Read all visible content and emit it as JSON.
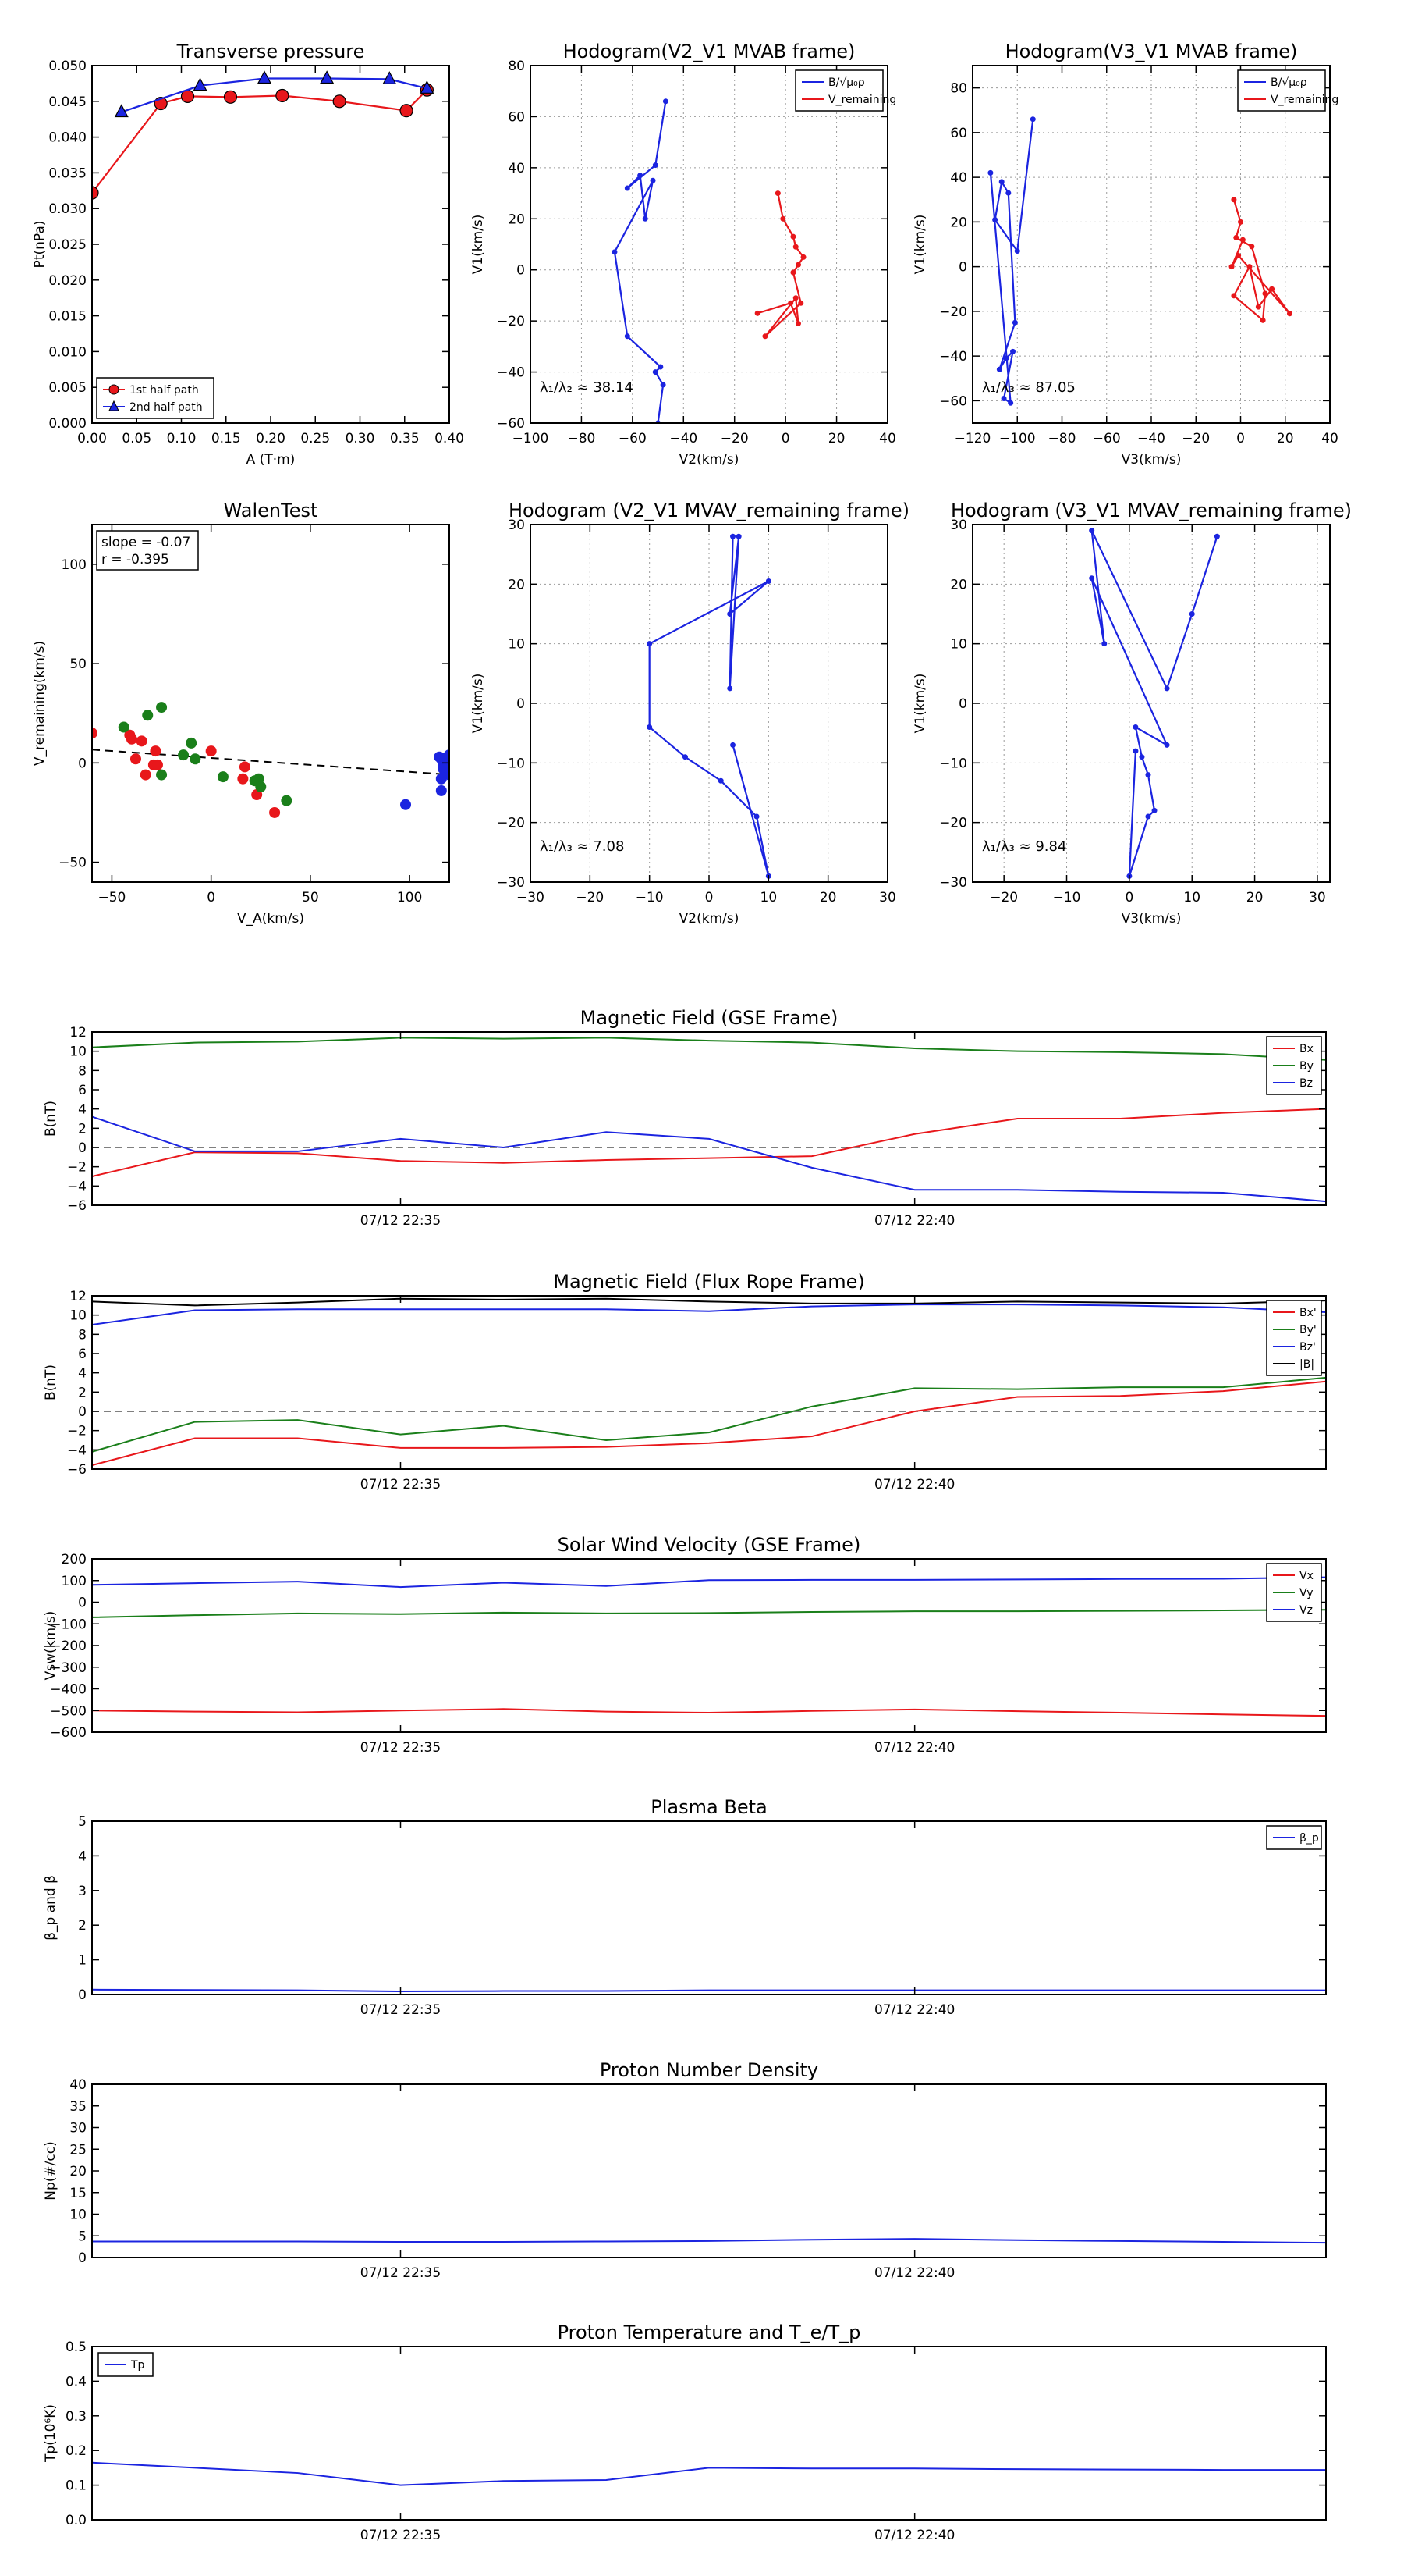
{
  "colors": {
    "red": "#e8171b",
    "green": "#1a7f1a",
    "blue": "#1b24e0",
    "black": "#000000",
    "grid": "#9a9a9a"
  },
  "chart_data": [
    {
      "id": "tp",
      "type": "line",
      "title": "Transverse pressure",
      "xlabel": "A (T·m)",
      "ylabel": "Pt(nPa)",
      "xlim": [
        0,
        0.4
      ],
      "ylim": [
        0,
        0.05
      ],
      "xticks": [
        "0.00",
        "0.05",
        "0.10",
        "0.15",
        "0.20",
        "0.25",
        "0.30",
        "0.35",
        "0.40"
      ],
      "yticks": [
        "0.000",
        "0.005",
        "0.010",
        "0.015",
        "0.020",
        "0.025",
        "0.030",
        "0.035",
        "0.040",
        "0.045",
        "0.050"
      ],
      "legend": "lower-left",
      "grid": false,
      "series": [
        {
          "name": "1st half path",
          "color": "red",
          "marker": "circle",
          "x": [
            0.0,
            0.077,
            0.107,
            0.155,
            0.213,
            0.277,
            0.352,
            0.375
          ],
          "y": [
            0.0322,
            0.0447,
            0.0457,
            0.0456,
            0.0458,
            0.045,
            0.0437,
            0.0466
          ]
        },
        {
          "name": "2nd half path",
          "color": "blue",
          "marker": "triangle",
          "x": [
            0.033,
            0.121,
            0.193,
            0.263,
            0.333,
            0.375
          ],
          "y": [
            0.0435,
            0.0472,
            0.0482,
            0.0482,
            0.0481,
            0.0468
          ]
        }
      ]
    },
    {
      "id": "h21",
      "type": "line",
      "title": "Hodogram(V2_V1 MVAB frame)",
      "xlabel": "V2(km/s)",
      "ylabel": "V1(km/s)",
      "xlim": [
        -100,
        40
      ],
      "ylim": [
        -60,
        80
      ],
      "xticks": [
        "−100",
        "−80",
        "−60",
        "−40",
        "−20",
        "0",
        "20",
        "40"
      ],
      "yticks": [
        "−60",
        "−40",
        "−20",
        "0",
        "20",
        "40",
        "60",
        "80"
      ],
      "legend": "top-right",
      "grid": true,
      "annotation": "λ₁/λ₂ ≈ 38.14",
      "series": [
        {
          "name": "B/√μ₀ρ",
          "color": "blue",
          "x": [
            -47,
            -51,
            -62,
            -57,
            -55,
            -52,
            -67,
            -62,
            -49,
            -51,
            -48,
            -50
          ],
          "y": [
            66,
            41,
            32,
            37,
            20,
            35,
            7,
            -26,
            -38,
            -40,
            -45,
            -60
          ]
        },
        {
          "name": "V_remaining",
          "color": "red",
          "x": [
            -3,
            -1,
            3,
            4,
            7,
            5,
            3,
            6,
            -8,
            4,
            5,
            2,
            -11
          ],
          "y": [
            30,
            20,
            13,
            9,
            5,
            2,
            -1,
            -13,
            -26,
            -11,
            -21,
            -13,
            -17
          ]
        }
      ]
    },
    {
      "id": "h31",
      "type": "line",
      "title": "Hodogram(V3_V1 MVAB frame)",
      "xlabel": "V3(km/s)",
      "ylabel": "V1(km/s)",
      "xlim": [
        -120,
        40
      ],
      "ylim": [
        -70,
        90
      ],
      "xticks": [
        "−120",
        "−100",
        "−80",
        "−60",
        "−40",
        "−20",
        "0",
        "20",
        "40"
      ],
      "yticks": [
        "−60",
        "−40",
        "−20",
        "0",
        "20",
        "40",
        "60",
        "80"
      ],
      "legend": "top-right",
      "grid": true,
      "annotation": "λ₁/λ₃ ≈ 87.05",
      "series": [
        {
          "name": "B/√μ₀ρ",
          "color": "blue",
          "x": [
            -93,
            -100,
            -110,
            -107,
            -104,
            -101,
            -108,
            -105,
            -102,
            -106,
            -103,
            -112
          ],
          "y": [
            66,
            7,
            21,
            38,
            33,
            -25,
            -46,
            -41,
            -38,
            -59,
            -61,
            42
          ]
        },
        {
          "name": "V_remaining",
          "color": "red",
          "x": [
            -3,
            0,
            -2,
            5,
            11,
            10,
            -3,
            4,
            8,
            14,
            22,
            -1,
            -4,
            1
          ],
          "y": [
            30,
            20,
            13,
            9,
            -12,
            -24,
            -13,
            0,
            -18,
            -10,
            -21,
            5,
            0,
            12
          ]
        }
      ]
    },
    {
      "id": "walen",
      "type": "scatter",
      "title": "WalenTest",
      "xlabel": "V_A(km/s)",
      "ylabel": "V_remaining(km/s)",
      "xlim": [
        -60,
        120
      ],
      "ylim": [
        -60,
        120
      ],
      "xticks": [
        "−50",
        "0",
        "50",
        "100"
      ],
      "yticks": [
        "−50",
        "0",
        "50",
        "100"
      ],
      "grid": false,
      "stats": [
        "slope = -0.07",
        "r = -0.395"
      ],
      "fit": {
        "slope": -0.07,
        "intercept": 2.5
      },
      "series": [
        {
          "color": "red",
          "x": [
            -60,
            -41,
            -40,
            -38,
            -33,
            -29,
            -28,
            -27,
            0,
            -35,
            17,
            16,
            23,
            32
          ],
          "y": [
            15,
            14,
            12,
            2,
            -6,
            -1,
            6,
            -1,
            6,
            11,
            -2,
            -8,
            -16,
            -25
          ]
        },
        {
          "color": "green",
          "x": [
            -44,
            -32,
            -25,
            -25,
            -10,
            -8,
            -14,
            6,
            22,
            24,
            25,
            38
          ],
          "y": [
            18,
            24,
            28,
            -6,
            10,
            2,
            4,
            -7,
            -9,
            -8,
            -12,
            -19
          ]
        },
        {
          "color": "blue",
          "x": [
            98,
            115,
            116,
            117,
            118,
            119,
            120,
            116,
            117,
            118,
            119,
            120,
            116,
            118,
            117
          ],
          "y": [
            -21,
            3,
            2,
            -2,
            -5,
            1,
            4,
            -14,
            0,
            -1,
            3,
            -6,
            -8,
            2,
            -3
          ]
        }
      ]
    },
    {
      "id": "hr21",
      "type": "line",
      "title": "Hodogram (V2_V1 MVAV_remaining frame)",
      "xlabel": "V2(km/s)",
      "ylabel": "V1(km/s)",
      "xlim": [
        -30,
        30
      ],
      "ylim": [
        -30,
        30
      ],
      "xticks": [
        "−30",
        "−20",
        "−10",
        "0",
        "10",
        "20",
        "30"
      ],
      "yticks": [
        "−30",
        "−20",
        "−10",
        "0",
        "10",
        "20",
        "30"
      ],
      "grid": true,
      "annotation": "λ₁/λ₃ ≈ 7.08",
      "series": [
        {
          "color": "blue",
          "x": [
            4,
            3.5,
            5,
            3.5,
            10,
            -10,
            -10,
            -4,
            2,
            8,
            10,
            4
          ],
          "y": [
            28,
            2.5,
            28,
            15,
            20.5,
            10,
            -4,
            -9,
            -13,
            -19,
            -29,
            -7
          ]
        }
      ]
    },
    {
      "id": "hr31",
      "type": "line",
      "title": "Hodogram (V3_V1 MVAV_remaining frame)",
      "xlabel": "V3(km/s)",
      "ylabel": "V1(km/s)",
      "xlim": [
        -25,
        32
      ],
      "ylim": [
        -30,
        30
      ],
      "xticks": [
        "−20",
        "−10",
        "0",
        "10",
        "20",
        "30"
      ],
      "yticks": [
        "−30",
        "−20",
        "−10",
        "0",
        "10",
        "20",
        "30"
      ],
      "grid": true,
      "annotation": "λ₁/λ₃ ≈ 9.84",
      "series": [
        {
          "color": "blue",
          "x": [
            14,
            10,
            6,
            -6,
            -4,
            -6,
            6,
            1,
            2,
            3,
            4,
            3,
            0,
            1
          ],
          "y": [
            28,
            15,
            2.5,
            29,
            10,
            21,
            -7,
            -4,
            -9,
            -12,
            -18,
            -19,
            -29,
            -8
          ]
        }
      ]
    },
    {
      "id": "mag_gse",
      "type": "line",
      "title": "Magnetic Field (GSE Frame)",
      "xlabel": "",
      "ylabel": "B(nT)",
      "xlim": [
        0,
        12
      ],
      "ylim": [
        -6,
        12
      ],
      "xticks_at": [
        3,
        8
      ],
      "xticks": [
        "07/12 22:35",
        "07/12 22:40"
      ],
      "yticks": [
        "−6",
        "−4",
        "−2",
        "0",
        "2",
        "4",
        "6",
        "8",
        "10",
        "12"
      ],
      "legend": "top-right",
      "zeroline": true,
      "x": [
        0,
        1,
        2,
        3,
        4,
        5,
        6,
        7,
        8,
        9,
        10,
        11,
        12
      ],
      "series": [
        {
          "name": "Bx",
          "color": "red",
          "values": [
            -3,
            -0.5,
            -0.6,
            -1.4,
            -1.6,
            -1.3,
            -1.1,
            -0.9,
            1.4,
            3.0,
            3.0,
            3.6,
            4.0
          ]
        },
        {
          "name": "By",
          "color": "green",
          "values": [
            10.4,
            10.9,
            11.0,
            11.4,
            11.3,
            11.4,
            11.1,
            10.9,
            10.3,
            10.0,
            9.9,
            9.7,
            9.1
          ]
        },
        {
          "name": "Bz",
          "color": "blue",
          "values": [
            3.2,
            -0.4,
            -0.4,
            0.9,
            0.0,
            1.6,
            0.9,
            -2.1,
            -4.4,
            -4.4,
            -4.6,
            -4.7,
            -5.6
          ]
        }
      ]
    },
    {
      "id": "mag_fr",
      "type": "line",
      "title": "Magnetic Field (Flux Rope Frame)",
      "xlabel": "",
      "ylabel": "B(nT)",
      "xlim": [
        0,
        12
      ],
      "ylim": [
        -6,
        12
      ],
      "xticks_at": [
        3,
        8
      ],
      "xticks": [
        "07/12 22:35",
        "07/12 22:40"
      ],
      "yticks": [
        "−6",
        "−4",
        "−2",
        "0",
        "2",
        "4",
        "6",
        "8",
        "10",
        "12"
      ],
      "legend": "top-right",
      "zeroline": true,
      "x": [
        0,
        1,
        2,
        3,
        4,
        5,
        6,
        7,
        8,
        9,
        10,
        11,
        12
      ],
      "series": [
        {
          "name": "Bx'",
          "color": "red",
          "values": [
            -5.6,
            -2.8,
            -2.8,
            -3.8,
            -3.8,
            -3.7,
            -3.3,
            -2.6,
            0,
            1.5,
            1.6,
            2.1,
            3.1
          ]
        },
        {
          "name": "By'",
          "color": "green",
          "values": [
            -4.2,
            -1.1,
            -0.9,
            -2.4,
            -1.5,
            -3.0,
            -2.2,
            0.5,
            2.4,
            2.3,
            2.5,
            2.5,
            3.5
          ]
        },
        {
          "name": "Bz'",
          "color": "blue",
          "values": [
            9.0,
            10.5,
            10.6,
            10.6,
            10.6,
            10.6,
            10.4,
            10.9,
            11.1,
            11.1,
            11.0,
            10.8,
            10.3
          ]
        },
        {
          "name": "|B|",
          "color": "black",
          "values": [
            11.4,
            11.0,
            11.3,
            11.7,
            11.6,
            11.7,
            11.4,
            11.2,
            11.2,
            11.4,
            11.3,
            11.2,
            11.5
          ]
        }
      ]
    },
    {
      "id": "vsw",
      "type": "line",
      "title": "Solar Wind Velocity (GSE Frame)",
      "xlabel": "",
      "ylabel": "Vsw(km/s)",
      "xlim": [
        0,
        12
      ],
      "ylim": [
        -600,
        200
      ],
      "xticks_at": [
        3,
        8
      ],
      "xticks": [
        "07/12 22:35",
        "07/12 22:40"
      ],
      "yticks": [
        "−600",
        "−500",
        "−400",
        "−300",
        "−200",
        "−100",
        "0",
        "100",
        "200"
      ],
      "legend": "top-right",
      "zeroline": false,
      "x": [
        0,
        1,
        2,
        3,
        4,
        5,
        6,
        7,
        8,
        9,
        10,
        11,
        12
      ],
      "series": [
        {
          "name": "Vx",
          "color": "red",
          "values": [
            -500,
            -505,
            -508,
            -500,
            -493,
            -505,
            -510,
            -502,
            -495,
            -503,
            -510,
            -518,
            -525
          ]
        },
        {
          "name": "Vy",
          "color": "green",
          "values": [
            -70,
            -60,
            -52,
            -55,
            -48,
            -52,
            -50,
            -45,
            -42,
            -42,
            -40,
            -38,
            -35
          ]
        },
        {
          "name": "Vz",
          "color": "blue",
          "values": [
            80,
            88,
            95,
            70,
            90,
            75,
            102,
            103,
            103,
            105,
            107,
            108,
            115
          ]
        }
      ]
    },
    {
      "id": "beta",
      "type": "line",
      "title": "Plasma Beta",
      "xlabel": "",
      "ylabel": "β_p and β",
      "xlim": [
        0,
        12
      ],
      "ylim": [
        0,
        5
      ],
      "xticks_at": [
        3,
        8
      ],
      "xticks": [
        "07/12 22:35",
        "07/12 22:40"
      ],
      "yticks": [
        "0",
        "1",
        "2",
        "3",
        "4",
        "5"
      ],
      "legend": "top-right",
      "zeroline": false,
      "x": [
        0,
        1,
        2,
        3,
        4,
        5,
        6,
        7,
        8,
        9,
        10,
        11,
        12
      ],
      "series": [
        {
          "name": "β_p",
          "color": "blue",
          "values": [
            0.14,
            0.13,
            0.12,
            0.09,
            0.1,
            0.1,
            0.12,
            0.12,
            0.12,
            0.12,
            0.12,
            0.12,
            0.12
          ]
        }
      ]
    },
    {
      "id": "np",
      "type": "line",
      "title": "Proton Number Density",
      "xlabel": "",
      "ylabel": "Np(#/cc)",
      "xlim": [
        0,
        12
      ],
      "ylim": [
        0,
        40
      ],
      "xticks_at": [
        3,
        8
      ],
      "xticks": [
        "07/12 22:35",
        "07/12 22:40"
      ],
      "yticks": [
        "0",
        "5",
        "10",
        "15",
        "20",
        "25",
        "30",
        "35",
        "40"
      ],
      "legend": "none",
      "zeroline": false,
      "x": [
        0,
        1,
        2,
        3,
        4,
        5,
        6,
        7,
        8,
        9,
        10,
        11,
        12
      ],
      "series": [
        {
          "name": "Np",
          "color": "blue",
          "values": [
            3.7,
            3.7,
            3.7,
            3.6,
            3.6,
            3.7,
            3.8,
            4.1,
            4.3,
            4.0,
            3.8,
            3.6,
            3.4
          ]
        }
      ]
    },
    {
      "id": "tpp",
      "type": "line",
      "title": "Proton Temperature and T_e/T_p",
      "xlabel": "",
      "ylabel": "Tp(10⁶K)",
      "xlim": [
        0,
        12
      ],
      "ylim": [
        0,
        0.5
      ],
      "xticks_at": [
        3,
        8
      ],
      "xticks": [
        "07/12 22:35",
        "07/12 22:40"
      ],
      "yticks": [
        "0.0",
        "0.1",
        "0.2",
        "0.3",
        "0.4",
        "0.5"
      ],
      "legend": "top-left",
      "zeroline": false,
      "x": [
        0,
        1,
        2,
        3,
        4,
        5,
        6,
        7,
        8,
        9,
        10,
        11,
        12
      ],
      "series": [
        {
          "name": "Tp",
          "color": "blue",
          "values": [
            0.165,
            0.15,
            0.135,
            0.1,
            0.112,
            0.115,
            0.15,
            0.148,
            0.148,
            0.146,
            0.145,
            0.144,
            0.144
          ]
        }
      ]
    }
  ]
}
